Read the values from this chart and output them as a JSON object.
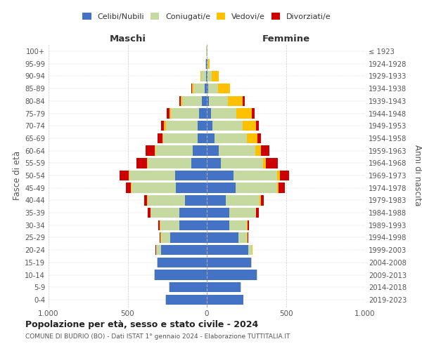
{
  "age_groups": [
    "0-4",
    "5-9",
    "10-14",
    "15-19",
    "20-24",
    "25-29",
    "30-34",
    "35-39",
    "40-44",
    "45-49",
    "50-54",
    "55-59",
    "60-64",
    "65-69",
    "70-74",
    "75-79",
    "80-84",
    "85-89",
    "90-94",
    "95-99",
    "100+"
  ],
  "birth_years": [
    "2019-2023",
    "2014-2018",
    "2009-2013",
    "2004-2008",
    "1999-2003",
    "1994-1998",
    "1989-1993",
    "1984-1988",
    "1979-1983",
    "1974-1978",
    "1969-1973",
    "1964-1968",
    "1959-1963",
    "1954-1958",
    "1949-1953",
    "1944-1948",
    "1939-1943",
    "1934-1938",
    "1929-1933",
    "1924-1928",
    "≤ 1923"
  ],
  "maschi": {
    "celibi": [
      260,
      235,
      330,
      310,
      290,
      230,
      175,
      175,
      140,
      195,
      200,
      100,
      90,
      60,
      60,
      50,
      30,
      15,
      5,
      3,
      2
    ],
    "coniugati": [
      2,
      3,
      5,
      5,
      30,
      60,
      120,
      180,
      235,
      280,
      290,
      275,
      235,
      215,
      200,
      175,
      125,
      70,
      30,
      5,
      2
    ],
    "vedovi": [
      0,
      0,
      0,
      0,
      2,
      2,
      2,
      2,
      2,
      3,
      5,
      5,
      5,
      5,
      10,
      12,
      10,
      10,
      5,
      2,
      0
    ],
    "divorziati": [
      0,
      0,
      0,
      0,
      2,
      5,
      8,
      15,
      20,
      35,
      55,
      65,
      55,
      30,
      20,
      15,
      10,
      5,
      2,
      0,
      0
    ]
  },
  "femmine": {
    "nubili": [
      230,
      215,
      315,
      280,
      260,
      200,
      140,
      140,
      120,
      180,
      170,
      90,
      75,
      50,
      35,
      25,
      15,
      10,
      5,
      3,
      2
    ],
    "coniugate": [
      2,
      3,
      5,
      5,
      25,
      55,
      115,
      170,
      215,
      265,
      275,
      265,
      230,
      205,
      190,
      160,
      120,
      60,
      25,
      5,
      2
    ],
    "vedove": [
      0,
      0,
      0,
      0,
      2,
      2,
      3,
      3,
      5,
      10,
      15,
      20,
      35,
      65,
      85,
      100,
      90,
      75,
      45,
      10,
      2
    ],
    "divorziate": [
      0,
      0,
      0,
      0,
      2,
      5,
      8,
      15,
      20,
      40,
      60,
      75,
      55,
      20,
      20,
      15,
      15,
      3,
      2,
      0,
      0
    ]
  },
  "colors": {
    "celibi": "#4472c4",
    "coniugati": "#c5d9a0",
    "vedovi": "#ffc000",
    "divorziati": "#cc0000"
  },
  "legend_labels": [
    "Celibi/Nubili",
    "Coniugati/e",
    "Vedovi/e",
    "Divorziati/e"
  ],
  "title": "Popolazione per età, sesso e stato civile - 2024",
  "subtitle": "COMUNE DI BUDRIO (BO) - Dati ISTAT 1° gennaio 2024 - Elaborazione TUTTITALIA.IT",
  "xlabel_left": "Maschi",
  "xlabel_right": "Femmine",
  "ylabel_left": "Fasce di età",
  "ylabel_right": "Anni di nascita",
  "xlim": 1000,
  "bg_color": "#ffffff",
  "grid_color": "#cccccc",
  "bar_height": 0.82
}
